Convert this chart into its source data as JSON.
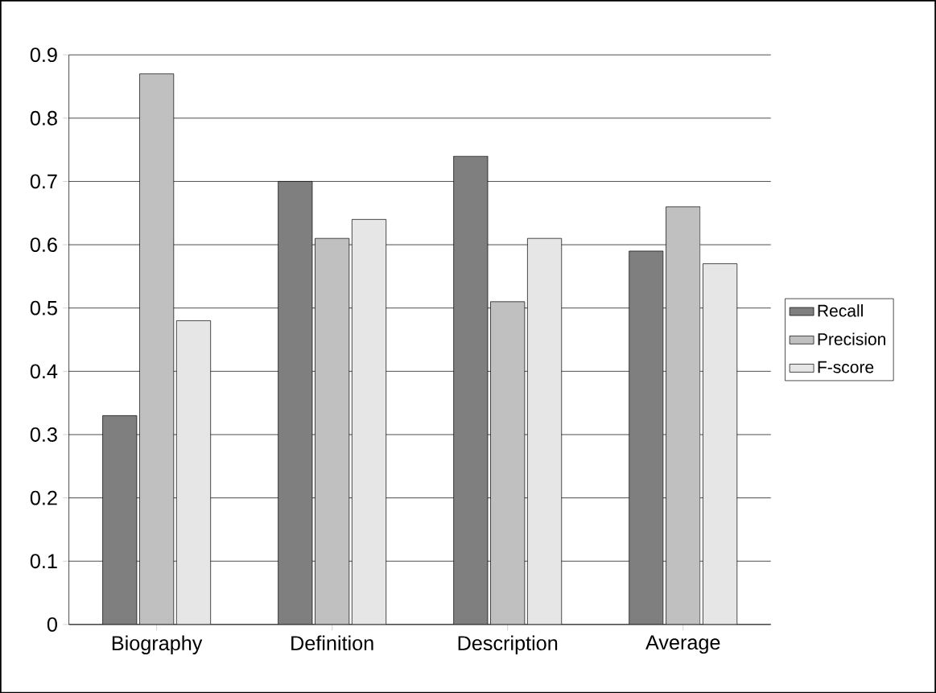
{
  "chart_data": {
    "type": "bar",
    "categories": [
      "Biography",
      "Definition",
      "Description",
      "Average"
    ],
    "series": [
      {
        "name": "Recall",
        "color": "#7f7f7f",
        "values": [
          0.33,
          0.7,
          0.74,
          0.59
        ]
      },
      {
        "name": "Precision",
        "color": "#c0c0c0",
        "values": [
          0.87,
          0.61,
          0.51,
          0.66
        ]
      },
      {
        "name": "F-score",
        "color": "#e6e6e6",
        "values": [
          0.48,
          0.64,
          0.61,
          0.57
        ]
      }
    ],
    "ylim": [
      0,
      0.9
    ],
    "yticks": [
      0,
      0.1,
      0.2,
      0.3,
      0.4,
      0.5,
      0.6,
      0.7,
      0.8,
      0.9
    ],
    "grid": "y",
    "legend": "right"
  }
}
